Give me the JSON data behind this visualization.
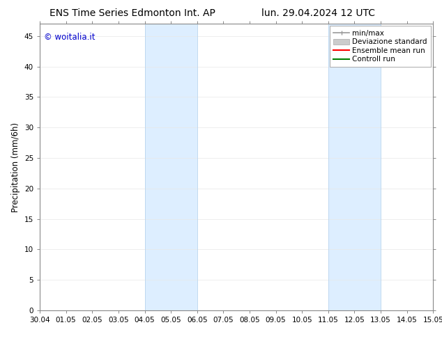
{
  "title_left": "ENS Time Series Edmonton Int. AP",
  "title_right": "lun. 29.04.2024 12 UTC",
  "ylabel": "Precipitation (mm/6h)",
  "watermark": "© woitalia.it",
  "watermark_color": "#0000cc",
  "x_tick_labels": [
    "30.04",
    "01.05",
    "02.05",
    "03.05",
    "04.05",
    "05.05",
    "06.05",
    "07.05",
    "08.05",
    "09.05",
    "10.05",
    "11.05",
    "12.05",
    "13.05",
    "14.05",
    "15.05"
  ],
  "x_tick_positions": [
    0,
    1,
    2,
    3,
    4,
    5,
    6,
    7,
    8,
    9,
    10,
    11,
    12,
    13,
    14,
    15
  ],
  "ylim": [
    0,
    47
  ],
  "yticks": [
    0,
    5,
    10,
    15,
    20,
    25,
    30,
    35,
    40,
    45
  ],
  "shaded_bands": [
    {
      "x_start": 4.0,
      "x_end": 6.0
    },
    {
      "x_start": 11.0,
      "x_end": 13.0
    }
  ],
  "shaded_color": "#ddeeff",
  "band_line_color": "#b8d4ee",
  "legend_items": [
    {
      "label": "min/max",
      "color": "#999999",
      "lw": 1.2
    },
    {
      "label": "Deviazione standard",
      "color": "#cccccc",
      "lw": 7
    },
    {
      "label": "Ensemble mean run",
      "color": "#ff0000",
      "lw": 1.5
    },
    {
      "label": "Controll run",
      "color": "#008000",
      "lw": 1.5
    }
  ],
  "bg_color": "#ffffff",
  "plot_bg_color": "#ffffff",
  "title_fontsize": 10,
  "tick_fontsize": 7.5,
  "ylabel_fontsize": 8.5,
  "legend_fontsize": 7.5,
  "grid_color": "#e8e8e8",
  "spine_color": "#888888",
  "axis_linewidth": 0.8
}
